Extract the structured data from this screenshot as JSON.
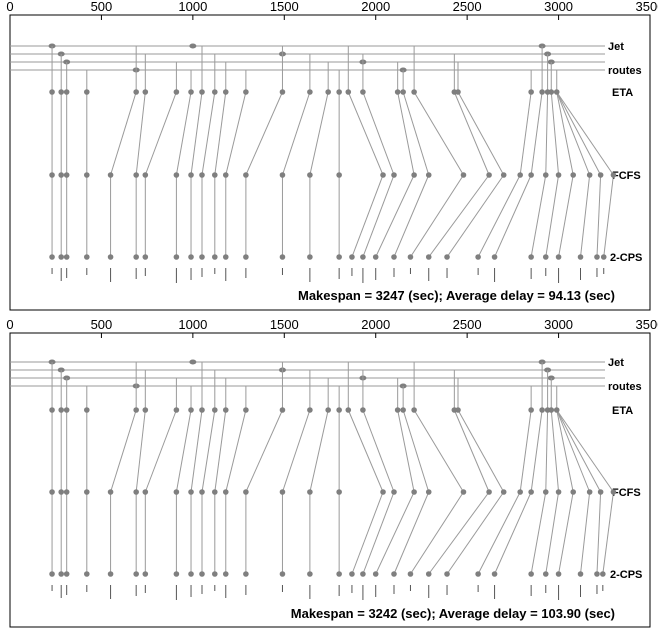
{
  "axis": {
    "min": 0,
    "max": 3500,
    "ticks": [
      {
        "value": 0,
        "label": "0"
      },
      {
        "value": 500,
        "label": "500"
      },
      {
        "value": 1000,
        "label": "1000"
      },
      {
        "value": 1500,
        "label": "1500"
      },
      {
        "value": 2000,
        "label": "2000"
      },
      {
        "value": 2500,
        "label": "2500"
      },
      {
        "value": 3000,
        "label": "3000"
      },
      {
        "value": 3500,
        "label": "3500"
      }
    ]
  },
  "labels": {
    "jet": "Jet",
    "routes": "routes",
    "eta": "ETA",
    "fcfs": "FCFS",
    "cps": "2-CPS"
  },
  "colors": {
    "node": "#7f7f7f",
    "line": "#9a9a9a",
    "text": "#000000"
  },
  "panels": [
    {
      "id": "top",
      "summary": "Makespan = 3247 (sec); Average delay = 94.13 (sec)",
      "eta": [
        230,
        280,
        310,
        420,
        690,
        740,
        910,
        990,
        1050,
        1120,
        1180,
        1290,
        1490,
        1640,
        1740,
        1800,
        1850,
        1930,
        2120,
        2150,
        2210,
        2430,
        2450,
        2850,
        2910,
        2940,
        2960,
        2990
      ],
      "fcfs": [
        230,
        280,
        310,
        420,
        550,
        690,
        740,
        910,
        990,
        1050,
        1120,
        1180,
        1290,
        1490,
        1640,
        1800,
        2040,
        2100,
        2210,
        2290,
        2480,
        2620,
        2700,
        2790,
        2850,
        2930,
        3000,
        3080,
        3170,
        3230,
        3300
      ],
      "cps": [
        230,
        280,
        310,
        420,
        550,
        690,
        740,
        910,
        990,
        1050,
        1120,
        1180,
        1290,
        1490,
        1640,
        1800,
        1870,
        1930,
        2000,
        2100,
        2190,
        2290,
        2390,
        2560,
        2650,
        2850,
        2930,
        3000,
        3120,
        3210,
        3247
      ],
      "links": [
        [
          2120,
          2210,
          2000
        ],
        [
          2150,
          2290,
          2100
        ],
        [
          2210,
          2480,
          2190
        ],
        [
          2430,
          2700,
          2560
        ],
        [
          2450,
          2790,
          2650
        ],
        [
          2910,
          3170,
          3120
        ],
        [
          2940,
          3230,
          3210
        ],
        [
          2960,
          3300,
          3247
        ],
        [
          1740,
          2040,
          1870
        ],
        [
          1850,
          2100,
          1930
        ]
      ]
    },
    {
      "id": "bottom",
      "summary": "Makespan = 3242 (sec); Average delay = 103.90 (sec)",
      "eta": [
        230,
        280,
        310,
        420,
        690,
        740,
        910,
        990,
        1050,
        1120,
        1180,
        1290,
        1490,
        1640,
        1740,
        1800,
        1850,
        1930,
        2120,
        2150,
        2210,
        2430,
        2450,
        2850,
        2910,
        2940,
        2960,
        2990
      ],
      "fcfs": [
        230,
        280,
        310,
        420,
        550,
        690,
        740,
        910,
        990,
        1050,
        1120,
        1180,
        1290,
        1490,
        1640,
        1800,
        2040,
        2100,
        2210,
        2290,
        2480,
        2620,
        2700,
        2790,
        2850,
        2930,
        3000,
        3080,
        3170,
        3230,
        3300
      ],
      "cps": [
        230,
        280,
        310,
        420,
        550,
        690,
        740,
        910,
        990,
        1050,
        1120,
        1180,
        1290,
        1490,
        1640,
        1800,
        1870,
        1930,
        2000,
        2100,
        2190,
        2290,
        2390,
        2560,
        2650,
        2850,
        2930,
        3000,
        3120,
        3210,
        3242
      ],
      "links": [
        [
          2120,
          2210,
          2000
        ],
        [
          2150,
          2290,
          2100
        ],
        [
          2210,
          2480,
          2190
        ],
        [
          2430,
          2700,
          2560
        ],
        [
          2450,
          2790,
          2650
        ],
        [
          2910,
          3170,
          3120
        ],
        [
          2940,
          3230,
          3210
        ],
        [
          2960,
          3300,
          3242
        ],
        [
          1740,
          2040,
          1870
        ],
        [
          1850,
          2100,
          1930
        ]
      ]
    }
  ],
  "jets": [
    230,
    280,
    310,
    690,
    1000,
    1490,
    1930,
    2150,
    2910,
    2940,
    2960
  ]
}
